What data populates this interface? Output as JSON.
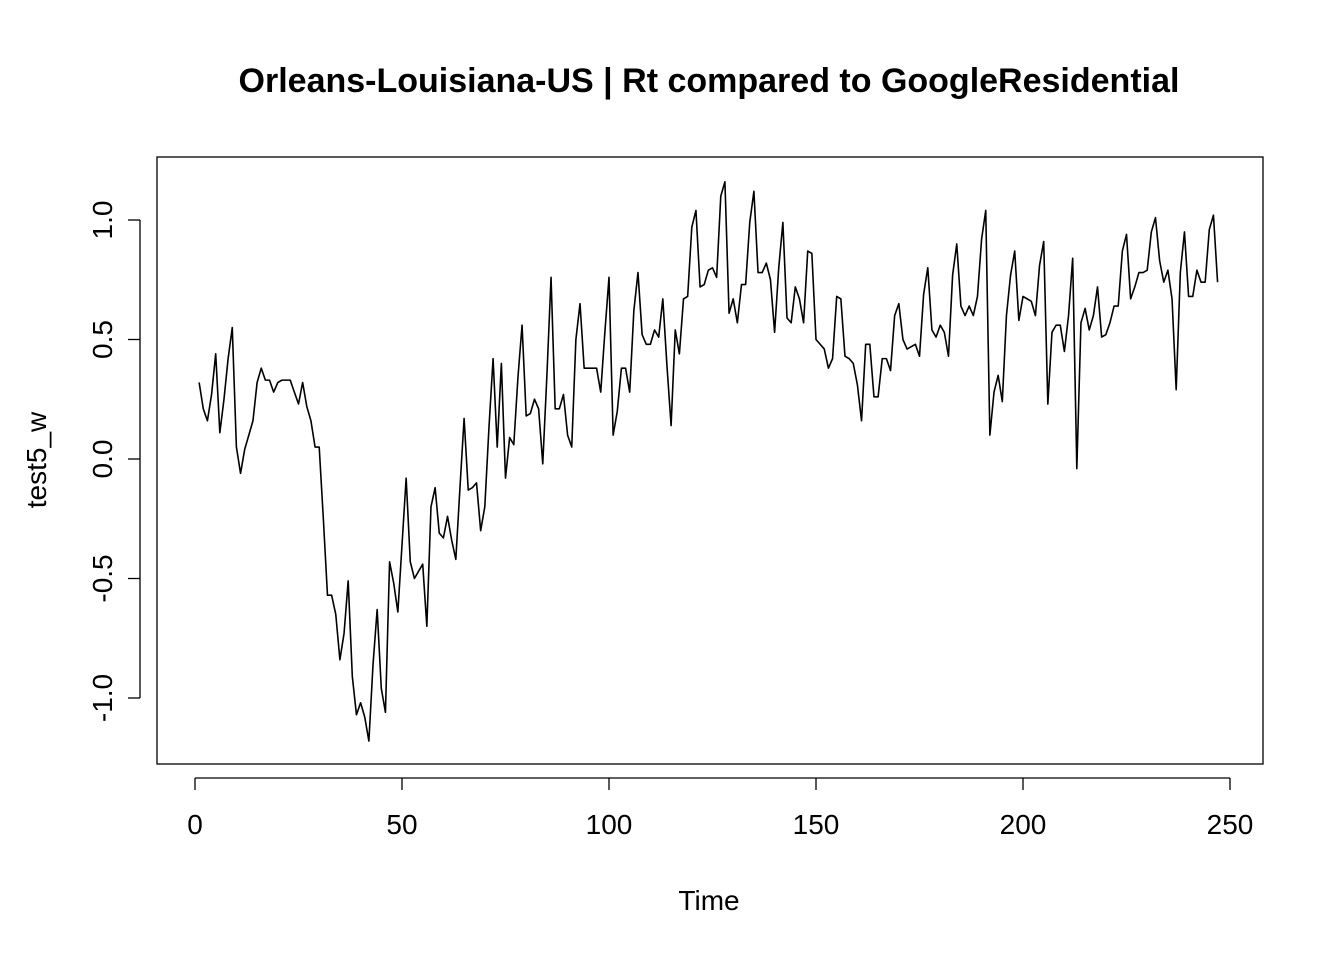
{
  "chart_data": {
    "type": "line",
    "title": "Orleans-Louisiana-US | Rt compared to GoogleResidential",
    "xlabel": "Time",
    "ylabel": "test5_w",
    "xlim": [
      0,
      250
    ],
    "ylim": [
      -1.25,
      1.25
    ],
    "x_ticks": [
      0,
      50,
      100,
      150,
      200,
      250
    ],
    "y_ticks": [
      -1.0,
      -0.5,
      0.0,
      0.5,
      1.0
    ],
    "x_tick_labels": [
      "0",
      "50",
      "100",
      "150",
      "200",
      "250"
    ],
    "y_tick_labels": [
      "-1.0",
      "-0.5",
      "0.0",
      "0.5",
      "1.0"
    ],
    "grid": false,
    "line_color": "#000000",
    "series": [
      {
        "x_start": 1,
        "x_step": 1,
        "values": [
          0.32,
          0.21,
          0.16,
          0.27,
          0.44,
          0.11,
          0.25,
          0.42,
          0.55,
          0.05,
          -0.06,
          0.04,
          0.1,
          0.16,
          0.32,
          0.38,
          0.33,
          0.33,
          0.28,
          0.32,
          0.33,
          0.33,
          0.33,
          0.28,
          0.23,
          0.32,
          0.22,
          0.16,
          0.05,
          0.05,
          -0.25,
          -0.57,
          -0.57,
          -0.65,
          -0.84,
          -0.73,
          -0.51,
          -0.91,
          -1.07,
          -1.02,
          -1.08,
          -1.18,
          -0.86,
          -0.63,
          -0.96,
          -1.06,
          -0.43,
          -0.52,
          -0.64,
          -0.36,
          -0.08,
          -0.43,
          -0.5,
          -0.47,
          -0.44,
          -0.7,
          -0.2,
          -0.12,
          -0.31,
          -0.33,
          -0.24,
          -0.34,
          -0.42,
          -0.12,
          0.17,
          -0.13,
          -0.12,
          -0.1,
          -0.3,
          -0.2,
          0.13,
          0.42,
          0.05,
          0.4,
          -0.08,
          0.09,
          0.06,
          0.34,
          0.56,
          0.18,
          0.19,
          0.25,
          0.21,
          -0.02,
          0.35,
          0.76,
          0.21,
          0.21,
          0.27,
          0.1,
          0.05,
          0.5,
          0.65,
          0.38,
          0.38,
          0.38,
          0.38,
          0.28,
          0.53,
          0.76,
          0.1,
          0.2,
          0.38,
          0.38,
          0.28,
          0.62,
          0.78,
          0.52,
          0.48,
          0.48,
          0.54,
          0.51,
          0.67,
          0.39,
          0.14,
          0.54,
          0.44,
          0.67,
          0.68,
          0.97,
          1.04,
          0.72,
          0.73,
          0.79,
          0.8,
          0.76,
          1.1,
          1.16,
          0.61,
          0.67,
          0.57,
          0.73,
          0.73,
          0.99,
          1.12,
          0.78,
          0.78,
          0.82,
          0.75,
          0.53,
          0.8,
          0.99,
          0.59,
          0.57,
          0.72,
          0.67,
          0.57,
          0.87,
          0.86,
          0.5,
          0.48,
          0.46,
          0.38,
          0.42,
          0.68,
          0.67,
          0.43,
          0.42,
          0.4,
          0.31,
          0.16,
          0.48,
          0.48,
          0.26,
          0.26,
          0.42,
          0.42,
          0.37,
          0.6,
          0.65,
          0.5,
          0.46,
          0.47,
          0.48,
          0.43,
          0.69,
          0.8,
          0.54,
          0.51,
          0.56,
          0.53,
          0.43,
          0.77,
          0.9,
          0.64,
          0.6,
          0.64,
          0.6,
          0.68,
          0.92,
          1.04,
          0.1,
          0.28,
          0.35,
          0.24,
          0.6,
          0.77,
          0.87,
          0.58,
          0.68,
          0.67,
          0.66,
          0.6,
          0.81,
          0.91,
          0.23,
          0.53,
          0.56,
          0.56,
          0.45,
          0.6,
          0.84,
          -0.04,
          0.57,
          0.63,
          0.54,
          0.6,
          0.72,
          0.51,
          0.52,
          0.57,
          0.64,
          0.64,
          0.87,
          0.94,
          0.67,
          0.72,
          0.78,
          0.78,
          0.79,
          0.95,
          1.01,
          0.83,
          0.74,
          0.79,
          0.67,
          0.29,
          0.78,
          0.95,
          0.68,
          0.68,
          0.79,
          0.74,
          0.74,
          0.96,
          1.02,
          0.74
        ]
      }
    ]
  }
}
